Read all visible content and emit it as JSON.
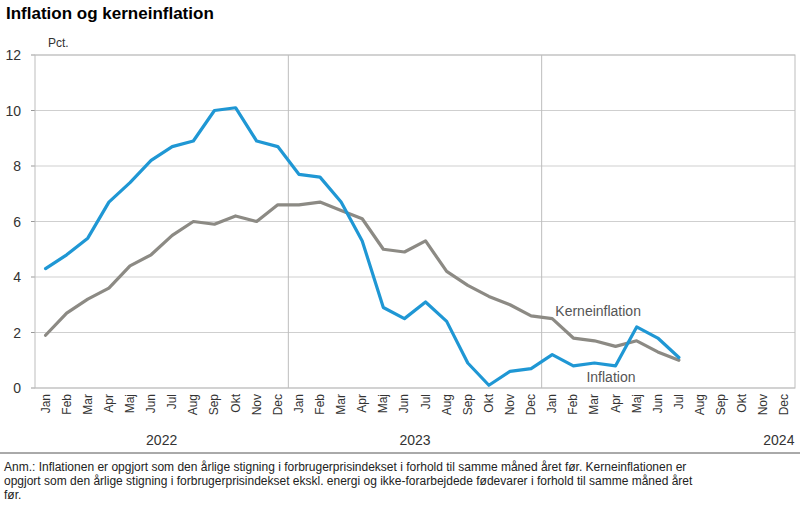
{
  "chart_data": {
    "type": "line",
    "title": "Inflation og kerneinflation",
    "y_label": "Pct.",
    "categories": [
      "Jan",
      "Feb",
      "Mar",
      "Apr",
      "Maj",
      "Jun",
      "Jul",
      "Aug",
      "Sep",
      "Okt",
      "Nov",
      "Dec",
      "Jan",
      "Feb",
      "Mar",
      "Apr",
      "Maj",
      "Jun",
      "Jul",
      "Aug",
      "Sep",
      "Okt",
      "Nov",
      "Dec",
      "Jan",
      "Feb",
      "Mar",
      "Apr",
      "Maj",
      "Jun",
      "Jul",
      "Aug",
      "Sep",
      "Okt",
      "Nov",
      "Dec"
    ],
    "groups": [
      {
        "label": "2022",
        "start": 0,
        "end": 11
      },
      {
        "label": "2023",
        "start": 12,
        "end": 23
      },
      {
        "label": "2024",
        "start": 24,
        "end": 35
      }
    ],
    "series": [
      {
        "name": "Inflation",
        "color": "#1f97d4",
        "values": [
          4.3,
          4.8,
          5.4,
          6.7,
          7.4,
          8.2,
          8.7,
          8.9,
          10.0,
          10.1,
          8.9,
          8.7,
          7.7,
          7.6,
          6.7,
          5.3,
          2.9,
          2.5,
          3.1,
          2.4,
          0.9,
          0.1,
          0.6,
          0.7,
          1.2,
          0.8,
          0.9,
          0.8,
          2.2,
          1.8,
          1.1,
          null,
          null,
          null,
          null,
          null
        ]
      },
      {
        "name": "Kerneinflation",
        "color": "#8c8a84",
        "values": [
          1.9,
          2.7,
          3.2,
          3.6,
          4.4,
          4.8,
          5.5,
          6.0,
          5.9,
          6.2,
          6.0,
          6.6,
          6.6,
          6.7,
          6.4,
          6.1,
          5.0,
          4.9,
          5.3,
          4.2,
          3.7,
          3.3,
          3.0,
          2.6,
          2.5,
          1.8,
          1.7,
          1.5,
          1.7,
          1.3,
          1.0,
          null,
          null,
          null,
          null,
          null
        ]
      }
    ],
    "ylim": [
      0,
      12
    ],
    "yticks": [
      0,
      2,
      4,
      6,
      8,
      10,
      12
    ],
    "grid": true,
    "note": [
      "Anm.: Inflationen er opgjort som den årlige stigning i forbrugerprisindekset i forhold til samme måned året før. Kerneinflationen er",
      "opgjort som den årlige stigning i forbrugerprisindekset ekskl. energi og ikke-forarbejdede fødevarer i forhold til samme måned året",
      "før."
    ]
  }
}
